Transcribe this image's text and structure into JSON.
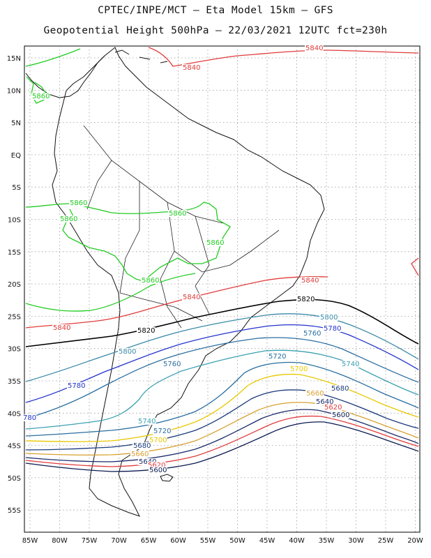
{
  "title_line1": "CPTEC/INPE/MCT –  Eta Model 15km – GFS",
  "title_line2": "Geopotential Height 500hPa – 22/03/2021 12UTC fct=230h",
  "lon_ticks": [
    "85W",
    "80W",
    "75W",
    "70W",
    "65W",
    "60W",
    "55W",
    "50W",
    "45W",
    "40W",
    "35W",
    "30W",
    "25W",
    "20W"
  ],
  "lat_ticks": [
    "15N",
    "10N",
    "5N",
    "EQ",
    "5S",
    "10S",
    "15S",
    "20S",
    "25S",
    "30S",
    "35S",
    "40S",
    "45S",
    "50S",
    "55S"
  ],
  "contour_labels": [
    {
      "name": "label-5840-north",
      "text": "5840",
      "color": "#e03b3b"
    },
    {
      "name": "label-5840-north-b",
      "text": "5840",
      "color": "#e03b3b"
    },
    {
      "name": "label-5860-caribbean",
      "text": "5860",
      "color": "#22cc22"
    },
    {
      "name": "label-5860-a",
      "text": "5860",
      "color": "#22cc22"
    },
    {
      "name": "label-5860-b",
      "text": "5860",
      "color": "#22cc22"
    },
    {
      "name": "label-5860-c",
      "text": "5860",
      "color": "#22cc22"
    },
    {
      "name": "label-5860-d",
      "text": "5860",
      "color": "#22cc22"
    },
    {
      "name": "label-5860-e",
      "text": "5860",
      "color": "#22cc22"
    },
    {
      "name": "label-5840-a",
      "text": "5840",
      "color": "#e03b3b"
    },
    {
      "name": "label-5840-b",
      "text": "5840",
      "color": "#e03b3b"
    },
    {
      "name": "label-5840-c",
      "text": "5840",
      "color": "#e03b3b"
    },
    {
      "name": "label-5820-a",
      "text": "5820",
      "color": "#000000"
    },
    {
      "name": "label-5820-b",
      "text": "5820",
      "color": "#000000"
    },
    {
      "name": "label-5800-a",
      "text": "5800",
      "color": "#3a8aa8"
    },
    {
      "name": "label-5800-b",
      "text": "5800",
      "color": "#3a8aa8"
    },
    {
      "name": "label-5780-a",
      "text": "5780",
      "color": "#2233cc"
    },
    {
      "name": "label-5780-b",
      "text": "5780",
      "color": "#2233cc"
    },
    {
      "name": "label-5780-c",
      "text": "780",
      "color": "#2233cc"
    },
    {
      "name": "label-5760-a",
      "text": "5760",
      "color": "#2a6ea0"
    },
    {
      "name": "label-5760-b",
      "text": "5760",
      "color": "#2a6ea0"
    },
    {
      "name": "label-5740-a",
      "text": "5740",
      "color": "#3aa0b0"
    },
    {
      "name": "label-5740-b",
      "text": "5740",
      "color": "#3aa0b0"
    },
    {
      "name": "label-5720-a",
      "text": "5720",
      "color": "#2a6ea0"
    },
    {
      "name": "label-5720-b",
      "text": "5720",
      "color": "#2a6ea0"
    },
    {
      "name": "label-5700-a",
      "text": "5700",
      "color": "#e8c800"
    },
    {
      "name": "label-5700-b",
      "text": "5700",
      "color": "#e8c800"
    },
    {
      "name": "label-5680-a",
      "text": "5680",
      "color": "#1a3a7a"
    },
    {
      "name": "label-5680-b",
      "text": "5680",
      "color": "#1a3a7a"
    },
    {
      "name": "label-5660-a",
      "text": "5660",
      "color": "#d9a030"
    },
    {
      "name": "label-5660-b",
      "text": "5660",
      "color": "#d9a030"
    },
    {
      "name": "label-5640-a",
      "text": "5640",
      "color": "#1a2a6a"
    },
    {
      "name": "label-5640-b",
      "text": "5640",
      "color": "#1a2a6a"
    },
    {
      "name": "label-5620-a",
      "text": "5620",
      "color": "#e03b3b"
    },
    {
      "name": "label-5620-b",
      "text": "5620",
      "color": "#e03b3b"
    },
    {
      "name": "label-5600-a",
      "text": "5600",
      "color": "#0a1a50"
    },
    {
      "name": "label-5600-b",
      "text": "5600",
      "color": "#0a1a50"
    }
  ]
}
